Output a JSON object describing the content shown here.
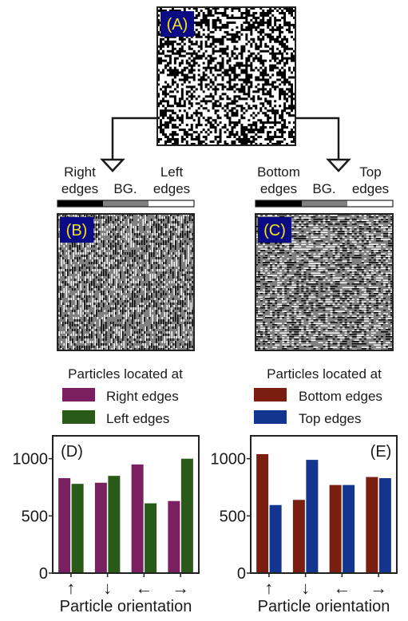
{
  "panel_labels": {
    "a": "(A)",
    "b": "(B)",
    "c": "(C)",
    "d": "(D)",
    "e": "(E)"
  },
  "colorbar_left": {
    "left_label": [
      "Right",
      "edges"
    ],
    "mid_label": "BG.",
    "right_label": [
      "Left",
      "edges"
    ]
  },
  "colorbar_right": {
    "left_label": [
      "Bottom",
      "edges"
    ],
    "mid_label": "BG.",
    "right_label": [
      "Top",
      "edges"
    ]
  },
  "legend_left": {
    "title": "Particles located at",
    "items": [
      "Right edges",
      "Left edges"
    ]
  },
  "legend_right": {
    "title": "Particles located at",
    "items": [
      "Bottom edges",
      "Top edges"
    ]
  },
  "colors": {
    "right_edges": "#7a2060",
    "left_edges": "#2a5a18",
    "bottom_edges": "#7a1e10",
    "top_edges": "#123690",
    "panel_label_bg": "#0b0b85",
    "panel_label_text": "#f2e21e"
  },
  "chart_data": [
    {
      "type": "bar",
      "panel": "(D)",
      "categories": [
        "↑",
        "↓",
        "←",
        "→"
      ],
      "series": [
        {
          "name": "Right edges",
          "values": [
            830,
            790,
            950,
            630
          ]
        },
        {
          "name": "Left edges",
          "values": [
            780,
            850,
            610,
            1000
          ]
        }
      ],
      "xlabel": "Particle orientation",
      "ylabel": "",
      "ylim": [
        0,
        1200
      ],
      "yticks": [
        0,
        500,
        1000
      ]
    },
    {
      "type": "bar",
      "panel": "(E)",
      "categories": [
        "↑",
        "↓",
        "←",
        "→"
      ],
      "series": [
        {
          "name": "Bottom edges",
          "values": [
            1040,
            640,
            770,
            840
          ]
        },
        {
          "name": "Top edges",
          "values": [
            595,
            990,
            770,
            830
          ]
        }
      ],
      "xlabel": "Particle orientation",
      "ylabel": "",
      "ylim": [
        0,
        1200
      ],
      "yticks": [
        0,
        500,
        1000
      ]
    }
  ]
}
